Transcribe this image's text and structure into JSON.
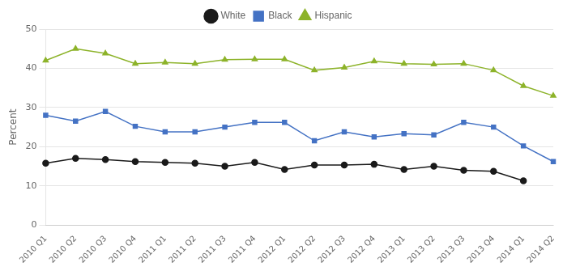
{
  "chart_data": {
    "type": "line",
    "categories": [
      "2010 Q1",
      "2010 Q2",
      "2010 Q3",
      "2010 Q4",
      "2011 Q1",
      "2011 Q2",
      "2011 Q3",
      "2011 Q4",
      "2012 Q1",
      "2012 Q2",
      "2012 Q3",
      "2012 Q4",
      "2013 Q1",
      "2013 Q2",
      "2013 Q3",
      "2013 Q4",
      "2014 Q1",
      "2014 Q2"
    ],
    "series": [
      {
        "name": "White",
        "color": "#1a1a1a",
        "marker": "circle",
        "values": [
          15.8,
          17.0,
          16.7,
          16.2,
          16.0,
          15.8,
          15.0,
          16.0,
          14.2,
          15.3,
          15.3,
          15.5,
          14.2,
          15.0,
          14.0,
          13.7,
          11.3,
          null
        ]
      },
      {
        "name": "Black",
        "color": "#4472c4",
        "marker": "square",
        "values": [
          28.0,
          26.5,
          29.0,
          25.2,
          23.8,
          23.8,
          25.0,
          26.2,
          26.2,
          21.5,
          23.8,
          22.5,
          23.3,
          23.0,
          26.2,
          25.0,
          20.2,
          16.2
        ]
      },
      {
        "name": "Hispanic",
        "color": "#8db32a",
        "marker": "triangle",
        "values": [
          42.0,
          45.0,
          43.8,
          41.2,
          41.5,
          41.2,
          42.2,
          42.3,
          42.3,
          39.5,
          40.2,
          41.8,
          41.2,
          41.0,
          41.2,
          39.5,
          35.5,
          33.0
        ]
      }
    ],
    "ylabel": "Percent",
    "ylim": [
      0,
      50
    ],
    "yticks": [
      0,
      10,
      20,
      30,
      40,
      50
    ],
    "grid": "y",
    "legend": "top"
  }
}
